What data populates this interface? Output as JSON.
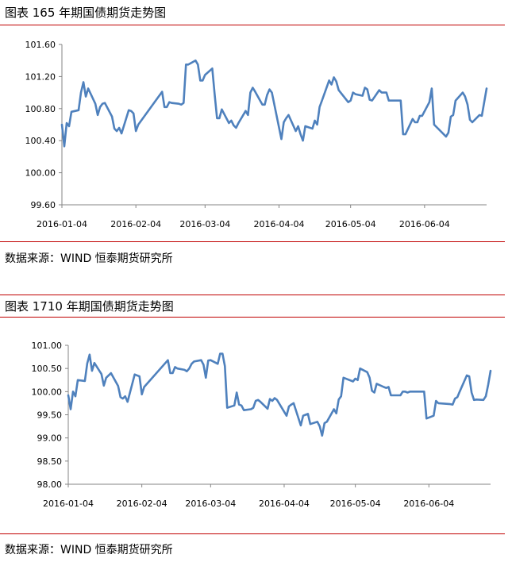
{
  "sections": [
    {
      "title": "图表 165 年期国债期货走势图",
      "source": "数据来源：WIND 恒泰期货研究所"
    },
    {
      "title": "图表 1710 年期国债期货走势图",
      "source": "数据来源：WIND 恒泰期货研究所"
    }
  ],
  "chart_data": [
    {
      "type": "line",
      "title": "",
      "xlabel": "",
      "ylabel": "",
      "x_ticks": [
        "2016-01-04",
        "2016-02-04",
        "2016-03-04",
        "2016-04-04",
        "2016-05-04",
        "2016-06-04"
      ],
      "y_ticks": [
        "99.60",
        "100.00",
        "100.40",
        "100.80",
        "101.20",
        "101.60"
      ],
      "x_range": [
        "2016-01-04",
        "2016-06-30"
      ],
      "ylim": [
        99.6,
        101.6
      ],
      "grid": false,
      "line_color": "#4f81bd",
      "x": [
        "2016-01-04",
        "2016-01-05",
        "2016-01-06",
        "2016-01-07",
        "2016-01-08",
        "2016-01-11",
        "2016-01-12",
        "2016-01-13",
        "2016-01-14",
        "2016-01-15",
        "2016-01-18",
        "2016-01-19",
        "2016-01-20",
        "2016-01-21",
        "2016-01-22",
        "2016-01-25",
        "2016-01-26",
        "2016-01-27",
        "2016-01-28",
        "2016-01-29",
        "2016-02-01",
        "2016-02-02",
        "2016-02-03",
        "2016-02-04",
        "2016-02-05",
        "2016-02-15",
        "2016-02-16",
        "2016-02-17",
        "2016-02-18",
        "2016-02-19",
        "2016-02-22",
        "2016-02-23",
        "2016-02-24",
        "2016-02-25",
        "2016-02-26",
        "2016-02-29",
        "2016-03-01",
        "2016-03-02",
        "2016-03-03",
        "2016-03-04",
        "2016-03-07",
        "2016-03-08",
        "2016-03-09",
        "2016-03-10",
        "2016-03-11",
        "2016-03-14",
        "2016-03-15",
        "2016-03-16",
        "2016-03-17",
        "2016-03-18",
        "2016-03-21",
        "2016-03-22",
        "2016-03-23",
        "2016-03-24",
        "2016-03-25",
        "2016-03-28",
        "2016-03-29",
        "2016-03-30",
        "2016-03-31",
        "2016-04-01",
        "2016-04-05",
        "2016-04-06",
        "2016-04-07",
        "2016-04-08",
        "2016-04-11",
        "2016-04-12",
        "2016-04-13",
        "2016-04-14",
        "2016-04-15",
        "2016-04-18",
        "2016-04-19",
        "2016-04-20",
        "2016-04-21",
        "2016-04-22",
        "2016-04-25",
        "2016-04-26",
        "2016-04-27",
        "2016-04-28",
        "2016-04-29",
        "2016-05-03",
        "2016-05-04",
        "2016-05-05",
        "2016-05-06",
        "2016-05-09",
        "2016-05-10",
        "2016-05-11",
        "2016-05-12",
        "2016-05-13",
        "2016-05-16",
        "2016-05-17",
        "2016-05-18",
        "2016-05-19",
        "2016-05-20",
        "2016-05-23",
        "2016-05-24",
        "2016-05-25",
        "2016-05-26",
        "2016-05-27",
        "2016-05-30",
        "2016-05-31",
        "2016-06-01",
        "2016-06-02",
        "2016-06-03",
        "2016-06-06",
        "2016-06-07",
        "2016-06-08",
        "2016-06-13",
        "2016-06-14",
        "2016-06-15",
        "2016-06-16",
        "2016-06-17",
        "2016-06-20",
        "2016-06-21",
        "2016-06-22",
        "2016-06-23",
        "2016-06-24",
        "2016-06-27",
        "2016-06-28",
        "2016-06-29",
        "2016-06-30"
      ],
      "values": [
        100.6,
        100.33,
        100.62,
        100.58,
        100.76,
        100.78,
        101.0,
        101.13,
        100.95,
        101.05,
        100.86,
        100.72,
        100.82,
        100.86,
        100.87,
        100.7,
        100.55,
        100.52,
        100.56,
        100.49,
        100.78,
        100.77,
        100.74,
        100.52,
        100.6,
        101.01,
        100.82,
        100.82,
        100.88,
        100.87,
        100.86,
        100.85,
        100.87,
        101.35,
        101.35,
        101.4,
        101.35,
        101.15,
        101.15,
        101.22,
        101.3,
        100.98,
        100.68,
        100.68,
        100.79,
        100.62,
        100.65,
        100.59,
        100.56,
        100.62,
        100.77,
        100.72,
        101.0,
        101.06,
        101.01,
        100.85,
        100.85,
        100.97,
        101.04,
        101.0,
        100.42,
        100.63,
        100.68,
        100.72,
        100.52,
        100.58,
        100.48,
        100.4,
        100.58,
        100.55,
        100.65,
        100.6,
        100.82,
        100.9,
        101.15,
        101.1,
        101.19,
        101.14,
        101.03,
        100.88,
        100.9,
        101.0,
        100.98,
        100.96,
        101.06,
        101.04,
        100.91,
        100.9,
        101.03,
        101.0,
        101.0,
        101.0,
        100.9,
        100.9,
        100.9,
        100.9,
        100.48,
        100.48,
        100.67,
        100.63,
        100.63,
        100.71,
        100.71,
        100.88,
        101.05,
        100.6,
        100.45,
        100.5,
        100.7,
        100.72,
        100.9,
        101.0,
        100.95,
        100.85,
        100.66,
        100.63,
        100.72,
        100.71,
        100.88,
        101.05
      ]
    },
    {
      "type": "line",
      "title": "",
      "xlabel": "",
      "ylabel": "",
      "x_ticks": [
        "2016-01-04",
        "2016-02-04",
        "2016-03-04",
        "2016-04-04",
        "2016-05-04",
        "2016-06-04"
      ],
      "y_ticks": [
        "98.00",
        "98.50",
        "99.00",
        "99.50",
        "100.00",
        "100.50",
        "101.00"
      ],
      "x_range": [
        "2016-01-04",
        "2016-06-30"
      ],
      "ylim": [
        98.0,
        101.0
      ],
      "grid": false,
      "line_color": "#4f81bd",
      "x": [
        "2016-01-04",
        "2016-01-05",
        "2016-01-06",
        "2016-01-07",
        "2016-01-08",
        "2016-01-11",
        "2016-01-12",
        "2016-01-13",
        "2016-01-14",
        "2016-01-15",
        "2016-01-18",
        "2016-01-19",
        "2016-01-20",
        "2016-01-21",
        "2016-01-22",
        "2016-01-25",
        "2016-01-26",
        "2016-01-27",
        "2016-01-28",
        "2016-01-29",
        "2016-02-01",
        "2016-02-02",
        "2016-02-03",
        "2016-02-04",
        "2016-02-05",
        "2016-02-15",
        "2016-02-16",
        "2016-02-17",
        "2016-02-18",
        "2016-02-19",
        "2016-02-22",
        "2016-02-23",
        "2016-02-24",
        "2016-02-25",
        "2016-02-26",
        "2016-02-29",
        "2016-03-01",
        "2016-03-02",
        "2016-03-03",
        "2016-03-04",
        "2016-03-07",
        "2016-03-08",
        "2016-03-09",
        "2016-03-10",
        "2016-03-11",
        "2016-03-14",
        "2016-03-15",
        "2016-03-16",
        "2016-03-17",
        "2016-03-18",
        "2016-03-21",
        "2016-03-22",
        "2016-03-23",
        "2016-03-24",
        "2016-03-25",
        "2016-03-28",
        "2016-03-29",
        "2016-03-30",
        "2016-03-31",
        "2016-04-01",
        "2016-04-05",
        "2016-04-06",
        "2016-04-07",
        "2016-04-08",
        "2016-04-11",
        "2016-04-12",
        "2016-04-13",
        "2016-04-14",
        "2016-04-15",
        "2016-04-18",
        "2016-04-19",
        "2016-04-20",
        "2016-04-21",
        "2016-04-22",
        "2016-04-25",
        "2016-04-26",
        "2016-04-27",
        "2016-04-28",
        "2016-04-29",
        "2016-05-03",
        "2016-05-04",
        "2016-05-05",
        "2016-05-06",
        "2016-05-09",
        "2016-05-10",
        "2016-05-11",
        "2016-05-12",
        "2016-05-13",
        "2016-05-16",
        "2016-05-17",
        "2016-05-18",
        "2016-05-19",
        "2016-05-20",
        "2016-05-23",
        "2016-05-24",
        "2016-05-25",
        "2016-05-26",
        "2016-05-27",
        "2016-05-30",
        "2016-05-31",
        "2016-06-01",
        "2016-06-02",
        "2016-06-03",
        "2016-06-06",
        "2016-06-07",
        "2016-06-08",
        "2016-06-13",
        "2016-06-14",
        "2016-06-15",
        "2016-06-16",
        "2016-06-17",
        "2016-06-20",
        "2016-06-21",
        "2016-06-22",
        "2016-06-23",
        "2016-06-24",
        "2016-06-27",
        "2016-06-28",
        "2016-06-29",
        "2016-06-30"
      ],
      "values": [
        99.92,
        99.62,
        100.0,
        99.9,
        100.25,
        100.23,
        100.61,
        100.8,
        100.45,
        100.62,
        100.38,
        100.13,
        100.3,
        100.35,
        100.4,
        100.12,
        99.88,
        99.85,
        99.9,
        99.78,
        100.37,
        100.35,
        100.33,
        99.94,
        100.1,
        100.68,
        100.4,
        100.4,
        100.53,
        100.5,
        100.47,
        100.44,
        100.5,
        100.6,
        100.65,
        100.68,
        100.58,
        100.3,
        100.67,
        100.68,
        100.6,
        100.82,
        100.82,
        100.55,
        99.65,
        99.7,
        99.98,
        99.72,
        99.7,
        99.6,
        99.62,
        99.65,
        99.8,
        99.82,
        99.78,
        99.63,
        99.84,
        99.8,
        99.86,
        99.82,
        99.48,
        99.68,
        99.72,
        99.75,
        99.27,
        99.48,
        99.5,
        99.52,
        99.3,
        99.35,
        99.25,
        99.05,
        99.32,
        99.35,
        99.62,
        99.53,
        99.83,
        99.9,
        100.3,
        100.22,
        100.28,
        100.25,
        100.5,
        100.42,
        100.3,
        100.02,
        99.98,
        100.17,
        100.1,
        100.08,
        100.1,
        99.92,
        99.92,
        99.92,
        100.0,
        100.0,
        99.98,
        100.0,
        100.0,
        100.0,
        100.0,
        100.0,
        99.42,
        99.48,
        99.8,
        99.75,
        99.73,
        99.72,
        99.85,
        99.88,
        100.0,
        100.35,
        100.33,
        99.98,
        99.82,
        99.83,
        99.82,
        99.9,
        100.15,
        100.45
      ]
    }
  ]
}
